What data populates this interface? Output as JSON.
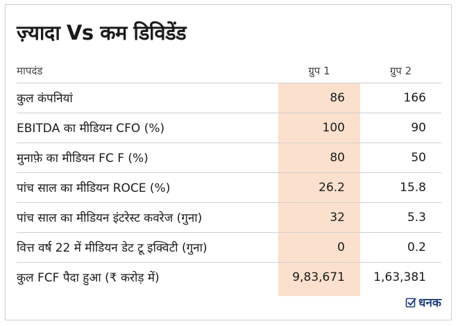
{
  "title": "ज़्यादा Vs कम डिविडेंड",
  "colors": {
    "highlight": "#fbe0cd",
    "border": "#cfcfcf",
    "brand": "#1f3d7a"
  },
  "table": {
    "headers": {
      "criterion": "मापदंड",
      "group1": "ग्रुप 1",
      "group2": "ग्रुप 2"
    },
    "rows": [
      {
        "label": "कुल कंपनियां",
        "group1": "86",
        "group2": "166"
      },
      {
        "label": "EBITDA का मीडियन CFO (%)",
        "group1": "100",
        "group2": "90"
      },
      {
        "label": "मुनाफ़े का मीडियन FC F (%)",
        "group1": "80",
        "group2": "50"
      },
      {
        "label": "पांच साल का मीडियन ROCE (%)",
        "group1": "26.2",
        "group2": "15.8"
      },
      {
        "label": "पांच साल का मीडियन इंटरेस्ट कवरेज (गुना)",
        "group1": "32",
        "group2": "5.3"
      },
      {
        "label": "वित्त वर्ष 22 में मीडियन डेट टू इक्विटी (गुना)",
        "group1": "0",
        "group2": "0.2"
      },
      {
        "label": "कुल FCF पैदा हुआ (₹ करोड़ में)",
        "group1": "9,83,671",
        "group2": "1,63,381"
      }
    ]
  },
  "logo": {
    "text": "धनक",
    "icon": "checkbox-icon"
  }
}
